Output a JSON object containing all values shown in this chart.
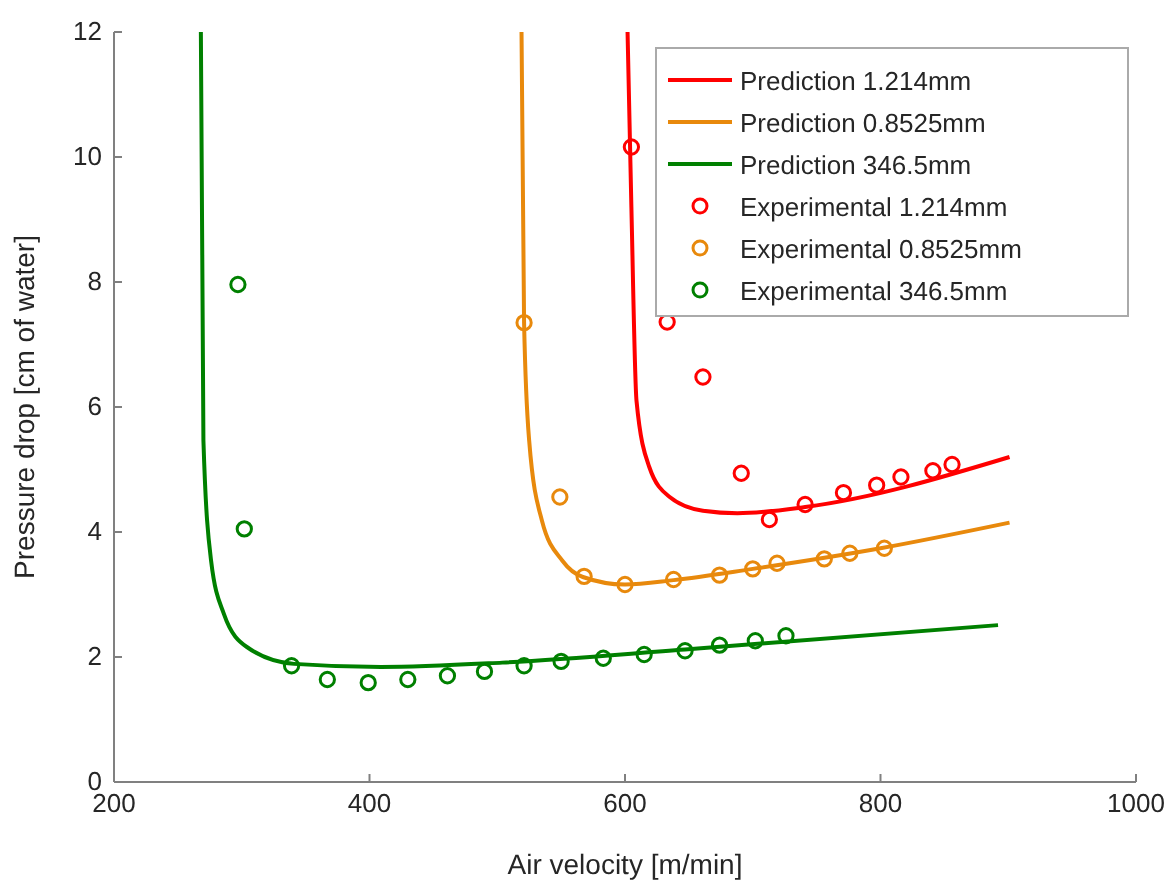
{
  "chart_data": {
    "type": "line",
    "xlabel": "Air velocity [m/min]",
    "ylabel": "Pressure drop [cm of water]",
    "xlim": [
      200,
      1000
    ],
    "ylim": [
      0,
      12
    ],
    "xticks": [
      200,
      400,
      600,
      800,
      1000
    ],
    "yticks": [
      0,
      2,
      4,
      6,
      8,
      10,
      12
    ],
    "legend": "top right",
    "grid": false,
    "series": [
      {
        "name": "Prediction 1.214mm",
        "color": "#ff0000",
        "marker": "none",
        "x": [
          602,
          605,
          609,
          619,
          635,
          661,
          688,
          741,
          901
        ],
        "values": [
          12,
          9.2,
          6.1,
          5.04,
          4.56,
          4.34,
          4.3,
          4.4,
          5.2
        ]
      },
      {
        "name": "Prediction 0.8525mm",
        "color": "#e8890c",
        "marker": "none",
        "x": [
          519,
          521,
          525,
          535,
          551,
          567,
          600,
          638,
          700,
          800,
          901
        ],
        "values": [
          12,
          7.35,
          5.46,
          4.18,
          3.54,
          3.28,
          3.16,
          3.23,
          3.41,
          3.74,
          4.15
        ]
      },
      {
        "name": "Prediction 346.5mm",
        "color": "#008000",
        "marker": "none",
        "x": [
          268,
          270,
          276,
          286,
          304,
          341,
          409,
          504,
          647,
          892
        ],
        "values": [
          12,
          5.46,
          3.54,
          2.69,
          2.16,
          1.89,
          1.84,
          1.91,
          2.12,
          2.51
        ]
      },
      {
        "name": "Experimental 1.214mm",
        "color": "#ff0000",
        "type": "scatter",
        "marker": "circle",
        "x": [
          605,
          633,
          661,
          691,
          713,
          741,
          771,
          797,
          816,
          841,
          856
        ],
        "values": [
          10.16,
          7.36,
          6.48,
          4.94,
          4.2,
          4.44,
          4.63,
          4.75,
          4.88,
          4.98,
          5.08
        ]
      },
      {
        "name": "Experimental 0.8525mm",
        "color": "#e8890c",
        "type": "scatter",
        "marker": "circle",
        "x": [
          521,
          549,
          568,
          600,
          638,
          674,
          700,
          719,
          756,
          776,
          803
        ],
        "values": [
          7.35,
          4.56,
          3.29,
          3.16,
          3.24,
          3.31,
          3.41,
          3.5,
          3.57,
          3.66,
          3.74
        ]
      },
      {
        "name": "Experimental 346.5mm",
        "color": "#008000",
        "type": "scatter",
        "marker": "circle",
        "x": [
          297,
          302,
          339,
          367,
          399,
          430,
          461,
          490,
          521,
          550,
          583,
          615,
          647,
          674,
          702,
          726
        ],
        "values": [
          7.96,
          4.05,
          1.86,
          1.64,
          1.59,
          1.64,
          1.7,
          1.77,
          1.86,
          1.93,
          1.98,
          2.04,
          2.1,
          2.19,
          2.26,
          2.34
        ]
      }
    ]
  }
}
